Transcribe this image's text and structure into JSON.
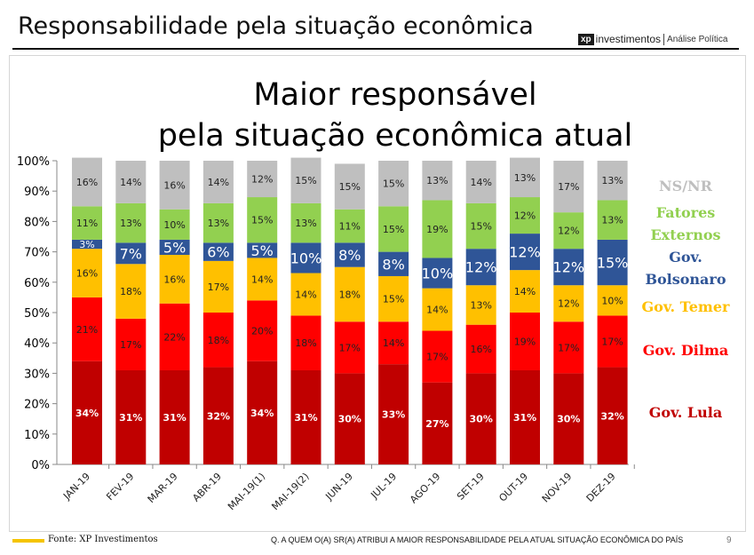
{
  "header": {
    "title": "Responsabilidade pela situação econômica",
    "logo_mark": "xp",
    "logo_name": "investimentos",
    "logo_sub": "Análise Política"
  },
  "footer": {
    "source": "Fonte: XP Investimentos",
    "question": "Q. A QUEM O(A) SR(A) ATRIBUI A MAIOR RESPONSABILIDADE PELA ATUAL  SITUAÇÃO ECONÔMICA DO PAÍS",
    "page": "9",
    "accent_color": "#F5C400"
  },
  "chart_data": {
    "type": "bar",
    "stacked": true,
    "title_line1": "Maior responsável",
    "title_line2": "pela situação econômica atual",
    "categories": [
      "JAN-19",
      "FEV-19",
      "MAR-19",
      "ABR-19",
      "MAI-19(1)",
      "MAI-19(2)",
      "JUN-19",
      "JUL-19",
      "AGO-19",
      "SET-19",
      "OUT-19",
      "NOV-19",
      "DEZ-19"
    ],
    "ylim": [
      0,
      100
    ],
    "y_ticks": [
      "0%",
      "10%",
      "20%",
      "30%",
      "40%",
      "50%",
      "60%",
      "70%",
      "80%",
      "90%",
      "100%"
    ],
    "grid": false,
    "legend_position": "right",
    "series": [
      {
        "name": "Gov. Lula",
        "color": "#C00000",
        "label_color": "#FFFFFF",
        "values": [
          34,
          31,
          31,
          32,
          34,
          31,
          30,
          33,
          27,
          30,
          31,
          30,
          32
        ]
      },
      {
        "name": "Gov. Dilma",
        "color": "#FF0000",
        "label_color": "#222222",
        "values": [
          21,
          17,
          22,
          18,
          20,
          18,
          17,
          14,
          17,
          16,
          19,
          17,
          17
        ]
      },
      {
        "name": "Gov. Temer",
        "color": "#FFC000",
        "label_color": "#222222",
        "values": [
          16,
          18,
          16,
          17,
          14,
          14,
          18,
          15,
          14,
          13,
          14,
          12,
          10
        ]
      },
      {
        "name": "Gov. Bolsonaro",
        "color": "#2F5597",
        "label_color": "#FFFFFF",
        "values": [
          3,
          7,
          5,
          6,
          5,
          10,
          8,
          8,
          10,
          12,
          12,
          12,
          15
        ]
      },
      {
        "name": "Fatores Externos",
        "color": "#92D050",
        "label_color": "#222222",
        "values": [
          11,
          13,
          10,
          13,
          15,
          13,
          11,
          15,
          19,
          15,
          12,
          12,
          13
        ]
      },
      {
        "name": "NS/NR",
        "color": "#BFBFBF",
        "label_color": "#222222",
        "values": [
          16,
          14,
          16,
          14,
          12,
          15,
          15,
          15,
          13,
          14,
          13,
          17,
          13
        ]
      }
    ],
    "legend": [
      {
        "lines": [
          "NS/NR"
        ],
        "color": "#BFBFBF"
      },
      {
        "lines": [
          "Fatores",
          "Externos"
        ],
        "color": "#92D050"
      },
      {
        "lines": [
          "Gov.",
          "Bolsonaro"
        ],
        "color": "#2F5597"
      },
      {
        "lines": [
          "Gov. Temer"
        ],
        "color": "#FFC000"
      },
      {
        "lines": [
          "Gov. Dilma"
        ],
        "color": "#FF0000"
      },
      {
        "lines": [
          "Gov. Lula"
        ],
        "color": "#C00000"
      }
    ]
  }
}
